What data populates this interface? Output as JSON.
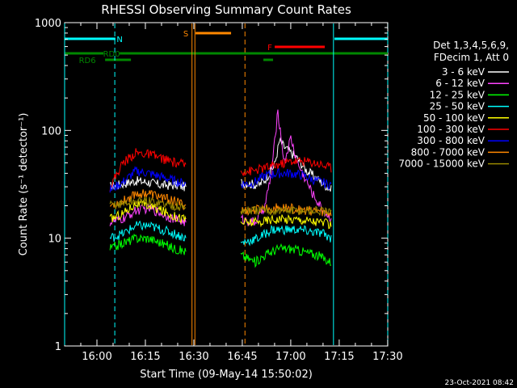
{
  "chart_data": {
    "type": "line",
    "title": "RHESSI Observing Summary Count Rates",
    "xlabel": "Start Time (09-May-14 15:50:02)",
    "ylabel": "Count Rate (s⁻¹ detector⁻¹)",
    "yscale": "log",
    "ylim": [
      1,
      1000
    ],
    "xlim_minutes": [
      -0.03,
      100
    ],
    "y_ticks": [
      {
        "v": 1,
        "label": "1"
      },
      {
        "v": 10,
        "label": "10"
      },
      {
        "v": 100,
        "label": "100"
      },
      {
        "v": 1000,
        "label": "1000"
      }
    ],
    "x_ticks": [
      {
        "m": 9.97,
        "label": "16:00"
      },
      {
        "m": 24.97,
        "label": "16:15"
      },
      {
        "m": 39.97,
        "label": "16:30"
      },
      {
        "m": 54.97,
        "label": "16:45"
      },
      {
        "m": 69.97,
        "label": "17:00"
      },
      {
        "m": 84.97,
        "label": "17:15"
      },
      {
        "m": 99.97,
        "label": "17:30"
      }
    ],
    "legend_title": [
      "Det 1,3,4,5,6,9,",
      "FDecim 1, Att 0"
    ],
    "timestamp": "23-Oct-2021 08:42",
    "gaps_minutes": [
      [
        38.8,
        54.5
      ]
    ],
    "series": [
      {
        "name": "3 - 6 keV",
        "color": "#ffffff",
        "t": [
          14,
          18,
          22,
          26,
          30,
          34,
          37.5,
          54.5,
          60,
          62,
          65,
          66.5,
          68,
          70,
          72,
          75,
          78,
          82.5
        ],
        "v": [
          30,
          32,
          34,
          33,
          31,
          31,
          30,
          33,
          31,
          35,
          48,
          80,
          70,
          62,
          55,
          42,
          36,
          28
        ]
      },
      {
        "name": "6 - 12 keV",
        "color": "#ff44ff",
        "t": [
          14,
          18,
          22,
          26,
          30,
          34,
          37.5,
          54.5,
          59,
          62,
          64,
          66,
          68,
          70,
          72,
          74,
          77,
          80,
          82.5
        ],
        "v": [
          14,
          15,
          18,
          19,
          17,
          15,
          14,
          15,
          14,
          20,
          40,
          150,
          50,
          85,
          50,
          38,
          25,
          18,
          15
        ]
      },
      {
        "name": "12 - 25 keV",
        "color": "#00ff00",
        "t": [
          14,
          18,
          22,
          26,
          30,
          34,
          37.5,
          54.5,
          59,
          62,
          66,
          70,
          74,
          78,
          82.5
        ],
        "v": [
          8,
          9,
          10,
          10,
          9,
          8,
          7.5,
          7,
          6,
          7,
          8,
          8,
          7.5,
          7,
          6
        ]
      },
      {
        "name": "25 - 50 keV",
        "color": "#00ffff",
        "t": [
          14,
          18,
          22,
          26,
          30,
          34,
          37.5,
          54.5,
          60,
          64,
          68,
          72,
          76,
          80,
          82.5
        ],
        "v": [
          10,
          11,
          13,
          13,
          12,
          11,
          10,
          9,
          10,
          12,
          12,
          12,
          11.5,
          11,
          10
        ]
      },
      {
        "name": "50 - 100 keV",
        "color": "#ffff00",
        "t": [
          14,
          18,
          22,
          26,
          30,
          34,
          37.5,
          54.5,
          60,
          64,
          68,
          72,
          76,
          80,
          82.5
        ],
        "v": [
          15,
          17,
          21,
          20,
          18,
          16,
          15,
          14,
          14,
          15,
          15,
          15,
          14.5,
          14,
          13
        ]
      },
      {
        "name": "100 - 300 keV",
        "color": "#ff0000",
        "t": [
          14,
          18,
          22,
          26,
          30,
          34,
          37.5,
          54.5,
          58,
          62,
          66,
          70,
          74,
          78,
          82.5
        ],
        "v": [
          30,
          50,
          62,
          60,
          55,
          50,
          48,
          42,
          42,
          45,
          48,
          52,
          52,
          50,
          45
        ]
      },
      {
        "name": "300 - 800 keV",
        "color": "#0000ff",
        "t": [
          14,
          18,
          22,
          26,
          30,
          34,
          37.5,
          54.5,
          58,
          62,
          66,
          70,
          74,
          78,
          82.5
        ],
        "v": [
          28,
          33,
          42,
          40,
          37,
          34,
          32,
          32,
          32,
          38,
          40,
          40,
          38,
          34,
          31
        ]
      },
      {
        "name": "800 - 7000 keV",
        "color": "#ff8800",
        "t": [
          14,
          18,
          22,
          26,
          30,
          34,
          37.5,
          54.5,
          58,
          62,
          66,
          70,
          74,
          78,
          82.5
        ],
        "v": [
          20,
          22,
          26,
          26,
          24,
          22,
          20,
          18,
          18,
          19,
          19,
          19,
          18,
          18,
          17
        ]
      },
      {
        "name": "7000 - 15000 keV",
        "color": "#998800",
        "t": [
          14,
          18,
          22,
          26,
          30,
          34,
          37.5,
          54.5,
          60,
          66,
          72,
          78,
          82.5
        ],
        "v": [
          20,
          21,
          22,
          22,
          21,
          20,
          19,
          18,
          18,
          18,
          18,
          18,
          17
        ]
      }
    ],
    "flag_bars": [
      {
        "label": "N",
        "color": "#00ffff",
        "segments": [
          [
            -0.03,
            15.7
          ],
          [
            83.5,
            100
          ]
        ],
        "label_m": 17
      },
      {
        "label": "S",
        "color": "#ff8800",
        "segments": [
          [
            40.5,
            51.5
          ]
        ],
        "label_m": 37.5
      },
      {
        "label": "F",
        "color": "#ff0000",
        "segments": [
          [
            65,
            80.5
          ]
        ],
        "label_m": 63.5
      },
      {
        "label": "RD0",
        "color": "#008800",
        "segments": [
          [
            -0.03,
            12
          ],
          [
            17,
            41
          ],
          [
            40,
            100
          ]
        ],
        "label_m": 14.5
      },
      {
        "label": "RD6",
        "color": "#008800",
        "segments": [
          [
            12.5,
            20.5
          ],
          [
            61.5,
            64.5
          ]
        ],
        "label_m": 7
      }
    ],
    "vertical_lines": [
      {
        "m": -0.03,
        "color": "#00ffff",
        "style": "solid"
      },
      {
        "m": 15.5,
        "color": "#00ffff",
        "style": "dashed"
      },
      {
        "m": 83.2,
        "color": "#00ffff",
        "style": "solid"
      },
      {
        "m": 100,
        "color": "#00ffff",
        "style": "dashed"
      },
      {
        "m": 39.4,
        "color": "#ff8800",
        "style": "solid"
      },
      {
        "m": 40.3,
        "color": "#ff8800",
        "style": "solid"
      },
      {
        "m": 55.8,
        "color": "#ff8800",
        "style": "dashed"
      }
    ]
  }
}
